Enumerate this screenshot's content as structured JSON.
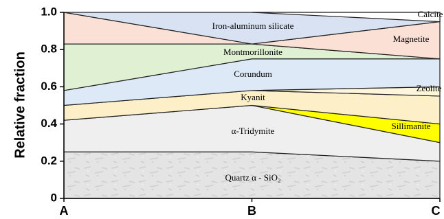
{
  "chart_data": {
    "type": "area",
    "y_label": "Relative fraction",
    "categories": [
      "A",
      "B",
      "C"
    ],
    "ylim": [
      0,
      1.0
    ],
    "yticks": [
      0,
      0.2,
      0.4,
      0.6,
      0.8,
      {
        "value": 1.0,
        "label": "1.0"
      }
    ],
    "series": [
      {
        "name": "Quartz α - SiO₂",
        "color": "#e4e4e4",
        "lower": [
          0,
          0,
          0
        ],
        "upper": [
          0.25,
          0.25,
          0.2
        ]
      },
      {
        "name": "α-Tridymite",
        "color": "#efefef",
        "lower": [
          0.25,
          0.25,
          0.2
        ],
        "upper": [
          0.42,
          0.5,
          0.3
        ]
      },
      {
        "name": "Sillimanite",
        "color": "#ffff00",
        "lower": [
          null,
          0.5,
          0.3
        ],
        "upper": [
          null,
          0.5,
          0.4
        ]
      },
      {
        "name": "Kyanit",
        "color": "#fdf0c8",
        "lower": [
          0.42,
          0.5,
          0.4
        ],
        "upper": [
          0.5,
          0.58,
          0.55
        ]
      },
      {
        "name": "Zeolite",
        "color": "#fdf5dc",
        "lower": [
          null,
          0.58,
          0.55
        ],
        "upper": [
          null,
          0.58,
          0.6
        ]
      },
      {
        "name": "Corundum",
        "color": "#dde9f6",
        "lower": [
          0.5,
          0.58,
          0.6
        ],
        "upper": [
          0.58,
          0.75,
          0.75
        ]
      },
      {
        "name": "Montmorillonite",
        "color": "#e0f0d2",
        "lower": [
          0.58,
          0.75,
          0.75
        ],
        "upper": [
          0.83,
          0.83,
          0.75
        ]
      },
      {
        "name": "Magnetite",
        "color": "#fbe1d5",
        "lower": [
          0.83,
          0.83,
          0.75
        ],
        "upper": [
          1.0,
          0.83,
          0.95
        ]
      },
      {
        "name": "Iron-aluminum silicate",
        "color": "#d9e2f3",
        "lower": [
          1.0,
          0.83,
          0.95
        ],
        "upper": [
          1.0,
          1.0,
          1.0
        ]
      },
      {
        "name": "Calcite",
        "color": "#ffffff",
        "lower": [
          null,
          1.0,
          0.95
        ],
        "upper": [
          null,
          1.0,
          1.0
        ]
      }
    ]
  }
}
